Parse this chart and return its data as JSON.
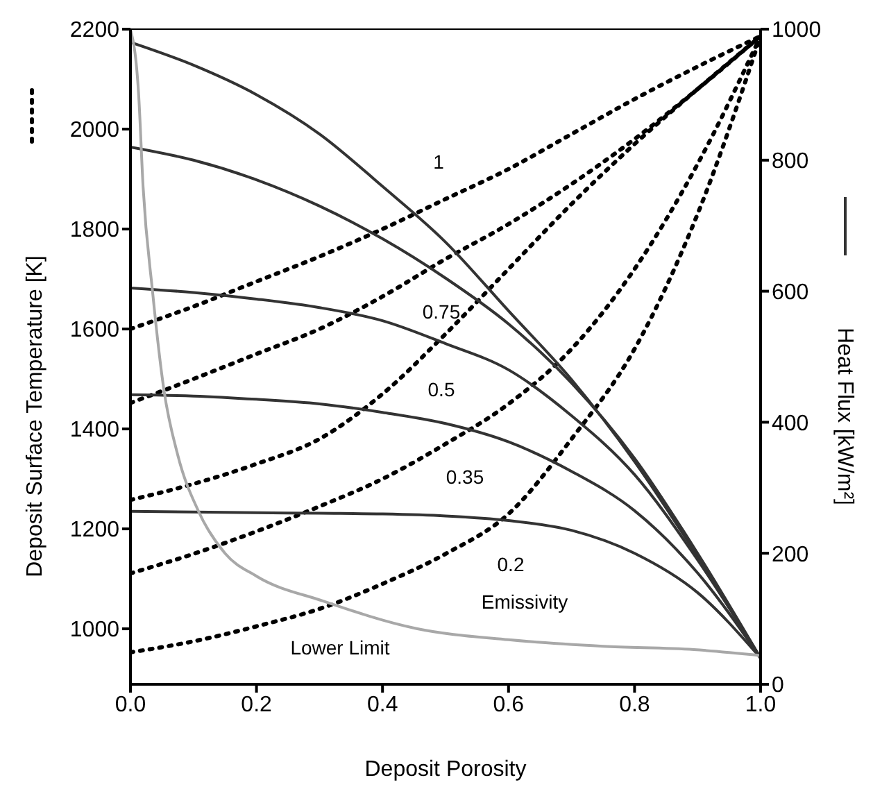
{
  "chart_data": {
    "type": "line",
    "xlabel": "Deposit Porosity",
    "ylabel": "Deposit Surface Temperature [K]",
    "y2label": "Heat Flux [kW/m²]",
    "xlim": [
      0,
      1
    ],
    "xticks": [
      {
        "value": 0,
        "label": "0.0"
      },
      {
        "value": 0.2,
        "label": "0.2"
      },
      {
        "value": 0.4,
        "label": "0.4"
      },
      {
        "value": 0.6,
        "label": "0.6"
      },
      {
        "value": 0.8,
        "label": "0.8"
      },
      {
        "value": 1,
        "label": "1.0"
      }
    ],
    "ylim": [
      889,
      2200
    ],
    "yticks": [
      1000,
      1200,
      1400,
      1600,
      1800,
      2000,
      2200
    ],
    "y2lim": [
      0,
      1000
    ],
    "y2ticks": [
      0,
      200,
      400,
      600,
      800,
      1000
    ],
    "grid": false,
    "marker": "none",
    "series": [
      {
        "color": "#000000",
        "line_style": "dotted",
        "x": [
          0,
          0.1,
          0.2,
          0.3,
          0.4,
          0.5,
          0.6,
          0.7,
          0.8,
          0.9,
          1
        ],
        "values": [
          1600,
          1645,
          1695,
          1745,
          1800,
          1860,
          1920,
          1990,
          2060,
          2125,
          2186
        ]
      },
      {
        "color": "#000000",
        "line_style": "dotted",
        "x": [
          0,
          0.1,
          0.2,
          0.3,
          0.4,
          0.5,
          0.6,
          0.7,
          0.8,
          0.9,
          1
        ],
        "values": [
          1452,
          1500,
          1550,
          1600,
          1665,
          1740,
          1810,
          1890,
          1980,
          2080,
          2186
        ]
      },
      {
        "color": "#000000",
        "line_style": "dotted",
        "x": [
          0,
          0.1,
          0.2,
          0.3,
          0.4,
          0.5,
          0.6,
          0.7,
          0.8,
          0.9,
          1
        ],
        "values": [
          1258,
          1290,
          1330,
          1380,
          1470,
          1590,
          1720,
          1850,
          1970,
          2080,
          2186
        ]
      },
      {
        "color": "#000000",
        "line_style": "dotted",
        "x": [
          0,
          0.1,
          0.2,
          0.3,
          0.4,
          0.5,
          0.6,
          0.7,
          0.8,
          0.9,
          1
        ],
        "values": [
          1111,
          1150,
          1195,
          1245,
          1300,
          1370,
          1450,
          1560,
          1720,
          1930,
          2186
        ]
      },
      {
        "color": "#000000",
        "line_style": "dotted",
        "x": [
          0,
          0.1,
          0.2,
          0.3,
          0.4,
          0.5,
          0.6,
          0.7,
          0.8,
          0.9,
          1
        ],
        "values": [
          953,
          975,
          1005,
          1040,
          1090,
          1150,
          1230,
          1380,
          1560,
          1830,
          2186
        ]
      },
      {
        "color": "#333333",
        "line_style": "solid",
        "axis": "y2",
        "x": [
          0,
          0.1,
          0.2,
          0.3,
          0.4,
          0.5,
          0.6,
          0.7,
          0.8,
          0.9,
          1
        ],
        "values": [
          980,
          945,
          900,
          840,
          760,
          675,
          570,
          465,
          340,
          195,
          40
        ]
      },
      {
        "color": "#333333",
        "line_style": "solid",
        "axis": "y2",
        "x": [
          0,
          0.1,
          0.2,
          0.3,
          0.4,
          0.5,
          0.6,
          0.7,
          0.8,
          0.9,
          1
        ],
        "values": [
          820,
          800,
          770,
          730,
          680,
          620,
          550,
          460,
          345,
          200,
          40
        ]
      },
      {
        "color": "#333333",
        "line_style": "solid",
        "axis": "y2",
        "x": [
          0,
          0.1,
          0.2,
          0.3,
          0.4,
          0.5,
          0.6,
          0.7,
          0.8,
          0.9,
          1
        ],
        "values": [
          605,
          598,
          588,
          575,
          555,
          520,
          480,
          410,
          320,
          190,
          40
        ]
      },
      {
        "color": "#333333",
        "line_style": "solid",
        "axis": "y2",
        "x": [
          0,
          0.1,
          0.2,
          0.3,
          0.4,
          0.5,
          0.6,
          0.7,
          0.8,
          0.9,
          1
        ],
        "values": [
          442,
          440,
          435,
          428,
          415,
          398,
          370,
          325,
          265,
          170,
          40
        ]
      },
      {
        "color": "#333333",
        "line_style": "solid",
        "axis": "y2",
        "x": [
          0,
          0.1,
          0.2,
          0.3,
          0.4,
          0.5,
          0.6,
          0.7,
          0.8,
          0.9,
          1
        ],
        "values": [
          264,
          263,
          262,
          261,
          260,
          257,
          250,
          235,
          200,
          140,
          40
        ]
      },
      {
        "color": "#a8a8a8",
        "line_style": "solid",
        "axis": "y2",
        "x": [
          0,
          0.013,
          0.02,
          0.035,
          0.053,
          0.075,
          0.108,
          0.15,
          0.2,
          0.306,
          0.454,
          0.6,
          0.75,
          0.894,
          1
        ],
        "values": [
          1000,
          900,
          760,
          600,
          450,
          350,
          264,
          200,
          165,
          127,
          85,
          68,
          58,
          53,
          44
        ]
      }
    ],
    "annotations": [
      "1",
      "0.75",
      "0.5",
      "0.35",
      "0.2",
      "Emissivity",
      "Lower Limit"
    ]
  }
}
